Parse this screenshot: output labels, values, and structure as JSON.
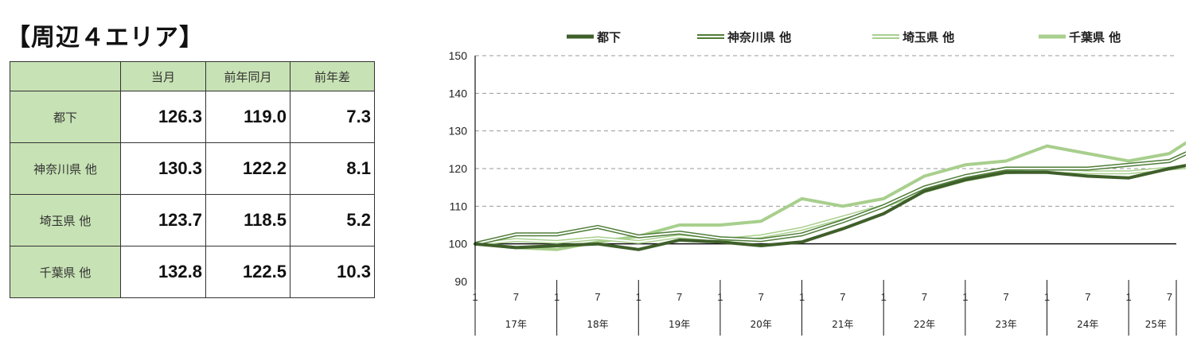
{
  "title": "【周辺４エリア】",
  "table": {
    "headers": [
      "当月",
      "前年同月",
      "前年差"
    ],
    "rows": [
      {
        "label": "都下",
        "values": [
          "126.3",
          "119.0",
          "7.3"
        ]
      },
      {
        "label": "神奈川県 他",
        "values": [
          "130.3",
          "122.2",
          "8.1"
        ]
      },
      {
        "label": "埼玉県 他",
        "values": [
          "123.7",
          "118.5",
          "5.2"
        ]
      },
      {
        "label": "千葉県 他",
        "values": [
          "132.8",
          "122.5",
          "10.3"
        ]
      }
    ]
  },
  "chart_data": {
    "type": "line",
    "ylim": [
      90,
      150
    ],
    "yticks": [
      90,
      100,
      110,
      120,
      130,
      140,
      150
    ],
    "grid": "horizontal dashed",
    "legend_position": "top",
    "baseline": 100,
    "month_ticks": [
      "1",
      "7"
    ],
    "years": [
      "17年",
      "18年",
      "19年",
      "20年",
      "21年",
      "22年",
      "23年",
      "24年",
      "25年"
    ],
    "months_in_last_year": 8,
    "series": [
      {
        "name": "都下",
        "color": "#3f5f2a",
        "style": "thick",
        "points": [
          [
            0,
            100
          ],
          [
            6,
            99
          ],
          [
            12,
            99.5
          ],
          [
            18,
            100
          ],
          [
            24,
            98.5
          ],
          [
            30,
            101
          ],
          [
            36,
            100.5
          ],
          [
            42,
            99.5
          ],
          [
            48,
            100.5
          ],
          [
            54,
            104
          ],
          [
            60,
            108
          ],
          [
            66,
            114
          ],
          [
            72,
            117
          ],
          [
            78,
            119
          ],
          [
            84,
            119
          ],
          [
            90,
            118
          ],
          [
            96,
            117.5
          ],
          [
            102,
            120
          ],
          [
            108,
            122
          ],
          [
            113,
            126.3
          ]
        ]
      },
      {
        "name": "神奈川県 他",
        "color": "#4f7d38",
        "style": "double",
        "points": [
          [
            0,
            100
          ],
          [
            6,
            102.5
          ],
          [
            12,
            102.5
          ],
          [
            18,
            104.5
          ],
          [
            24,
            102
          ],
          [
            30,
            103
          ],
          [
            36,
            101.5
          ],
          [
            42,
            101
          ],
          [
            48,
            102.5
          ],
          [
            54,
            106
          ],
          [
            60,
            110
          ],
          [
            66,
            115
          ],
          [
            72,
            118
          ],
          [
            78,
            120
          ],
          [
            84,
            120
          ],
          [
            90,
            120
          ],
          [
            96,
            121
          ],
          [
            102,
            122
          ],
          [
            108,
            127
          ],
          [
            113,
            130.3
          ]
        ]
      },
      {
        "name": "埼玉県 他",
        "color": "#a9d08e",
        "style": "double-light",
        "points": [
          [
            0,
            100
          ],
          [
            6,
            101
          ],
          [
            12,
            100.5
          ],
          [
            18,
            101.5
          ],
          [
            24,
            100.5
          ],
          [
            30,
            102
          ],
          [
            36,
            101
          ],
          [
            42,
            102
          ],
          [
            48,
            104
          ],
          [
            54,
            107
          ],
          [
            60,
            110
          ],
          [
            66,
            114
          ],
          [
            72,
            117
          ],
          [
            78,
            119
          ],
          [
            84,
            119.5
          ],
          [
            90,
            119
          ],
          [
            96,
            119
          ],
          [
            102,
            120
          ],
          [
            108,
            121
          ],
          [
            113,
            123.7
          ]
        ]
      },
      {
        "name": "千葉県 他",
        "color": "#a8cf8d",
        "style": "thick",
        "points": [
          [
            0,
            100
          ],
          [
            6,
            99
          ],
          [
            12,
            98.5
          ],
          [
            18,
            100.5
          ],
          [
            24,
            102
          ],
          [
            30,
            105
          ],
          [
            36,
            105
          ],
          [
            42,
            106
          ],
          [
            48,
            112
          ],
          [
            54,
            110
          ],
          [
            60,
            112
          ],
          [
            66,
            118
          ],
          [
            72,
            121
          ],
          [
            78,
            122
          ],
          [
            84,
            126
          ],
          [
            90,
            124
          ],
          [
            96,
            122
          ],
          [
            102,
            124
          ],
          [
            108,
            131
          ],
          [
            113,
            132.8
          ]
        ]
      }
    ]
  }
}
